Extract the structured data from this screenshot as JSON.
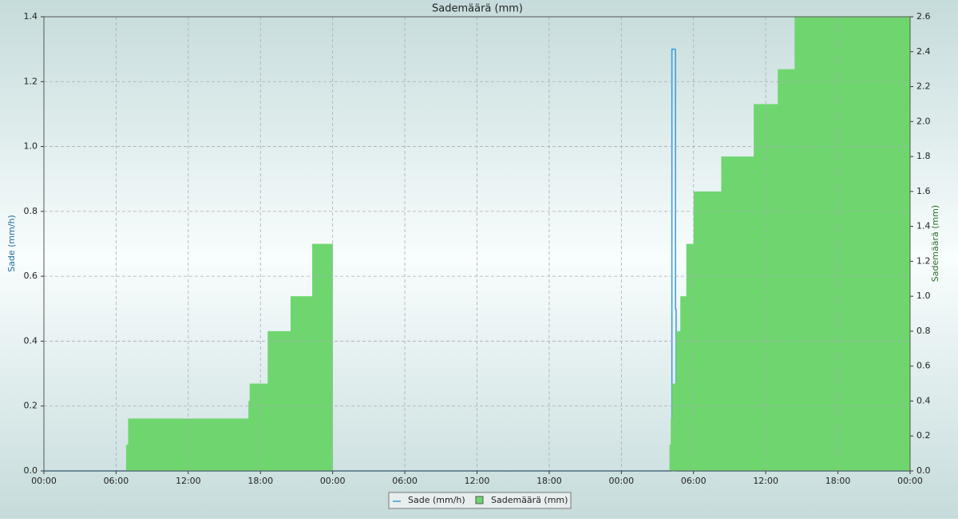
{
  "chart_data": {
    "type": "line",
    "title": "Sademäärä (mm)",
    "y_label": "Sade (mm/h)",
    "y2_label": "Sademäärä (mm)",
    "grid": true,
    "xlim": [
      0,
      72
    ],
    "xticks": [
      {
        "value": 0,
        "label": "00:00"
      },
      {
        "value": 6,
        "label": "06:00"
      },
      {
        "value": 12,
        "label": "12:00"
      },
      {
        "value": 18,
        "label": "18:00"
      },
      {
        "value": 24,
        "label": "00:00"
      },
      {
        "value": 30,
        "label": "06:00"
      },
      {
        "value": 36,
        "label": "12:00"
      },
      {
        "value": 42,
        "label": "18:00"
      },
      {
        "value": 48,
        "label": "00:00"
      },
      {
        "value": 54,
        "label": "06:00"
      },
      {
        "value": 60,
        "label": "12:00"
      },
      {
        "value": 66,
        "label": "18:00"
      },
      {
        "value": 72,
        "label": "00:00"
      }
    ],
    "ylim": [
      0,
      1.4
    ],
    "yticks": [
      {
        "value": 0,
        "label": "0.0"
      },
      0.2,
      0.4,
      0.6,
      0.8,
      {
        "value": 1,
        "label": "1.0"
      },
      1.2,
      1.4
    ],
    "y2lim": [
      0,
      2.6
    ],
    "y2ticks": [
      {
        "value": 0,
        "label": "0.0"
      },
      0.2,
      0.4,
      0.6,
      0.8,
      {
        "value": 1,
        "label": "1.0"
      },
      1.2,
      1.4,
      1.6,
      1.8,
      {
        "value": 2,
        "label": "2.0"
      },
      2.2,
      2.4,
      2.6
    ],
    "series": [
      {
        "name": "Sade (mm/h)",
        "color": "#3a9ad6",
        "type": "line",
        "x": [
          0,
          52.2,
          52.5,
          52.55,
          72
        ],
        "values": [
          0,
          1.3,
          0.5,
          0,
          0
        ]
      },
      {
        "name": "Sademäärä (mm)",
        "color": "#6fd66f",
        "type": "area",
        "axis": "y2",
        "x": [
          0,
          6.83,
          7.0,
          17.0,
          17.1,
          18.6,
          20.5,
          22.3,
          24.0,
          52.0,
          52.1,
          52.2,
          52.55,
          52.9,
          53.4,
          54.0,
          56.3,
          59.0,
          61.0,
          62.4,
          72
        ],
        "values": [
          0,
          0.15,
          0.3,
          0.4,
          0.5,
          0.8,
          1.0,
          1.3,
          0,
          0.15,
          0.3,
          0.5,
          0.8,
          1.0,
          1.3,
          1.6,
          1.8,
          2.1,
          2.3,
          2.6,
          2.6
        ]
      }
    ]
  }
}
